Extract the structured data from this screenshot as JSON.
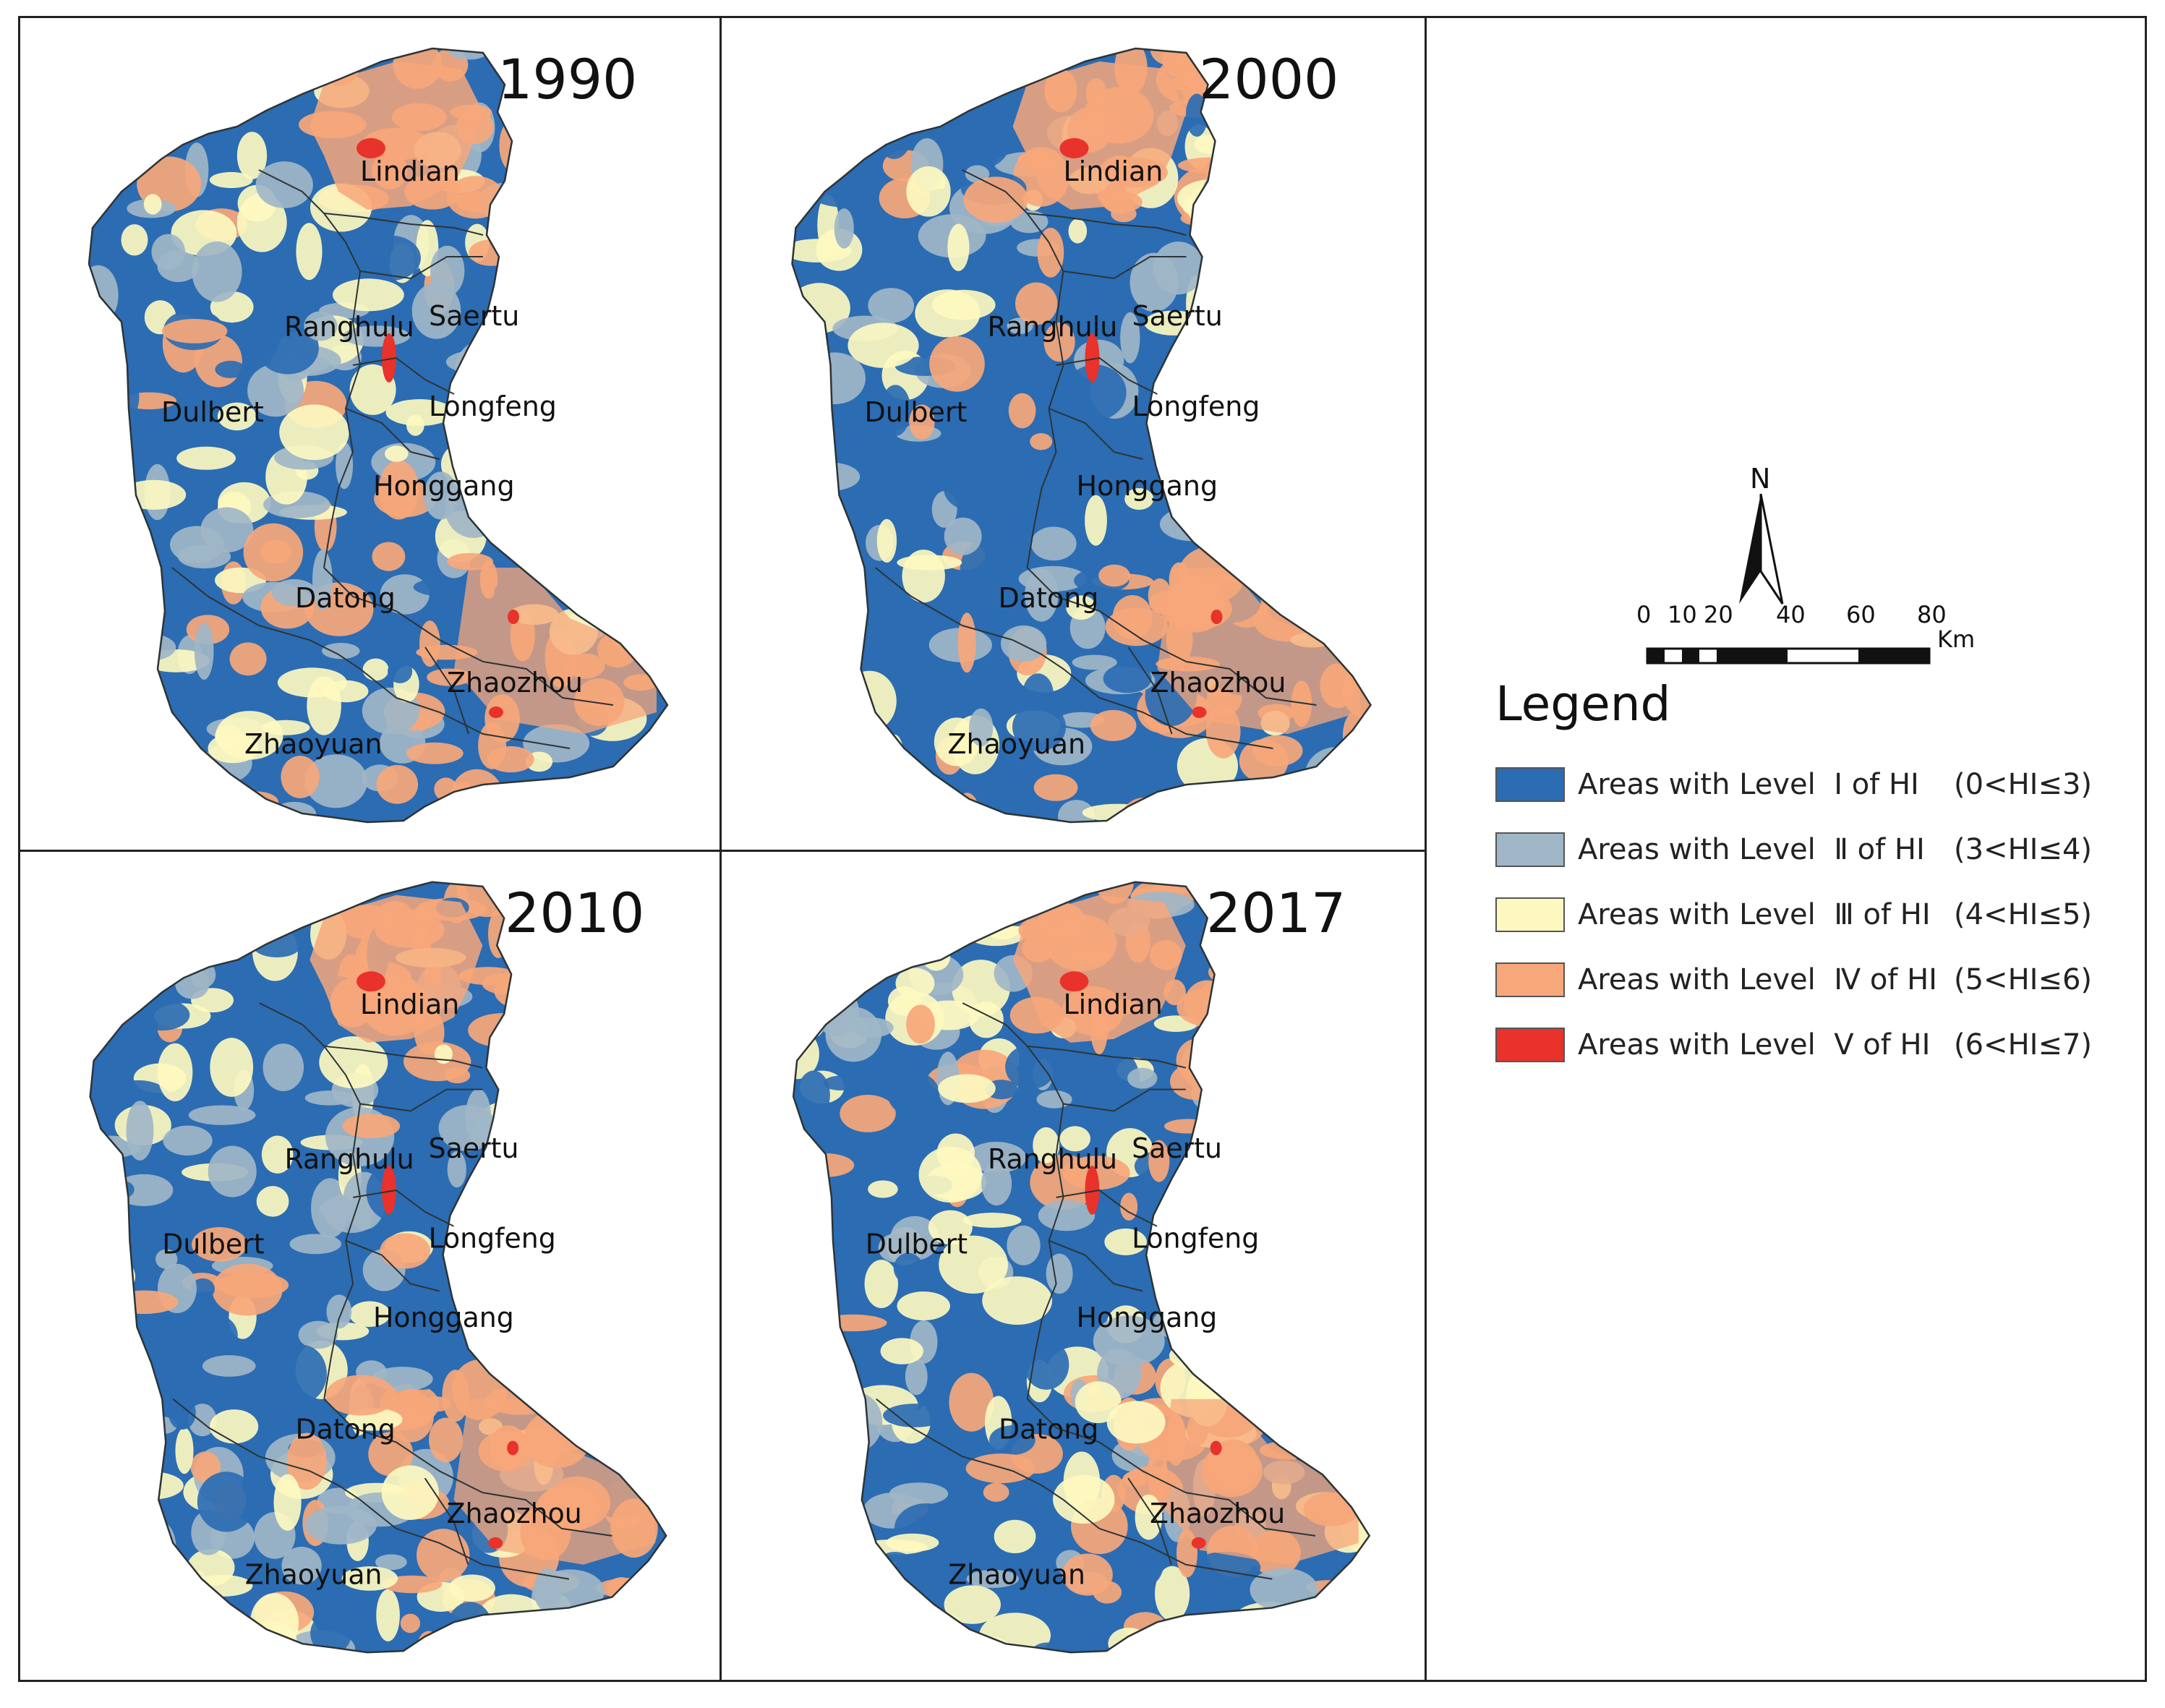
{
  "colors": {
    "level1": "#2b6cb3",
    "level2": "#9fb6c7",
    "level3": "#fdf8c0",
    "level4": "#f7a77a",
    "level5": "#e8322b",
    "boundary": "#2d3436"
  },
  "panels": [
    {
      "year": "1990",
      "series": "p1990"
    },
    {
      "year": "2000",
      "series": "p2000"
    },
    {
      "year": "2010",
      "series": "p2010"
    },
    {
      "year": "2017",
      "series": "p2017"
    }
  ],
  "place_labels": {
    "lindian": "Lindian",
    "ranghulu": "Ranghulu",
    "saertu": "Saertu",
    "longfeng": "Longfeng",
    "dulbert": "Dulbert",
    "honggang": "Honggang",
    "datong": "Datong",
    "zhaozhou": "Zhaozhou",
    "zhaoyuan": "Zhaoyuan"
  },
  "north_arrow": {
    "label": "N"
  },
  "scale_bar": {
    "ticks": [
      "0",
      "10",
      "20",
      "40",
      "60",
      "80"
    ],
    "unit": "Km"
  },
  "legend": {
    "title": "Legend",
    "items": [
      {
        "label": "Areas with Level  Ⅰ of HI",
        "range": "(0<HI≤3)",
        "color": "#2b6cb3"
      },
      {
        "label": "Areas with Level  Ⅱ of HI",
        "range": "(3<HI≤4)",
        "color": "#9fb6c7"
      },
      {
        "label": "Areas with Level  Ⅲ of HI",
        "range": "(4<HI≤5)",
        "color": "#fdf8c0"
      },
      {
        "label": "Areas with Level  Ⅳ of HI",
        "range": "(5<HI≤6)",
        "color": "#f7a77a"
      },
      {
        "label": "Areas with Level  Ⅴ of HI",
        "range": "(6<HI≤7)",
        "color": "#e8322b"
      }
    ]
  }
}
